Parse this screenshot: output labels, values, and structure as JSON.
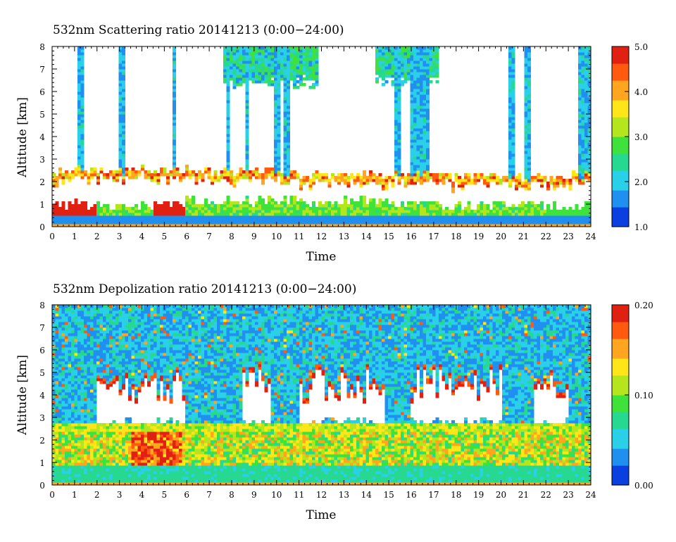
{
  "chart_data": [
    {
      "type": "heatmap",
      "title": "532nm Scattering ratio  20141213 (0:00−24:00)",
      "xlabel": "Time",
      "ylabel": "Altitude [km]",
      "xlim": [
        0,
        24
      ],
      "ylim": [
        0,
        8
      ],
      "x_ticks": [
        "0",
        "1",
        "2",
        "3",
        "4",
        "5",
        "6",
        "7",
        "8",
        "9",
        "10",
        "11",
        "12",
        "13",
        "14",
        "15",
        "16",
        "17",
        "18",
        "19",
        "20",
        "21",
        "22",
        "23",
        "24"
      ],
      "y_ticks": [
        "0",
        "1",
        "2",
        "3",
        "4",
        "5",
        "6",
        "7",
        "8"
      ],
      "colorbar": {
        "min": 1.0,
        "max": 5.0,
        "labels": [
          "1.0",
          "2.0",
          "3.0",
          "4.0",
          "5.0"
        ]
      },
      "colorscale": [
        "#0a3fe0",
        "#1f8ff0",
        "#29d0e8",
        "#27d890",
        "#3ee23a",
        "#b5e61d",
        "#ffe619",
        "#ffa520",
        "#ff5a10",
        "#e02010"
      ],
      "features": {
        "boundary_layer_top_km": [
          2.4,
          2.6,
          2.5,
          2.4,
          2.6,
          2.5,
          2.6,
          2.4,
          2.4,
          2.5,
          2.5,
          2.3,
          2.3,
          2.3,
          2.4,
          2.3,
          2.4,
          2.3,
          2.2,
          2.3,
          2.2,
          2.2,
          2.2,
          2.3,
          2.3
        ],
        "column_start_hours": [
          1.2,
          3.0,
          5.3,
          7.7,
          8.6,
          9.9,
          10.3,
          15.2,
          16.0,
          16.4,
          20.4,
          21.1,
          23.5
        ]
      }
    },
    {
      "type": "heatmap",
      "title": "532nm Depolization ratio  20141213 (0:00−24:00)",
      "xlabel": "Time",
      "ylabel": "Altitude [km]",
      "xlim": [
        0,
        24
      ],
      "ylim": [
        0,
        8
      ],
      "x_ticks": [
        "0",
        "1",
        "2",
        "3",
        "4",
        "5",
        "6",
        "7",
        "8",
        "9",
        "10",
        "11",
        "12",
        "13",
        "14",
        "15",
        "16",
        "17",
        "18",
        "19",
        "20",
        "21",
        "22",
        "23",
        "24"
      ],
      "y_ticks": [
        "0",
        "1",
        "2",
        "3",
        "4",
        "5",
        "6",
        "7",
        "8"
      ],
      "colorbar": {
        "min": 0.0,
        "max": 0.2,
        "labels": [
          "0.00",
          "0.10",
          "0.20"
        ]
      },
      "colorscale": [
        "#0a3fe0",
        "#1f8ff0",
        "#29d0e8",
        "#27d890",
        "#3ee23a",
        "#b5e61d",
        "#ffe619",
        "#ffa520",
        "#ff5a10",
        "#e02010"
      ]
    }
  ]
}
